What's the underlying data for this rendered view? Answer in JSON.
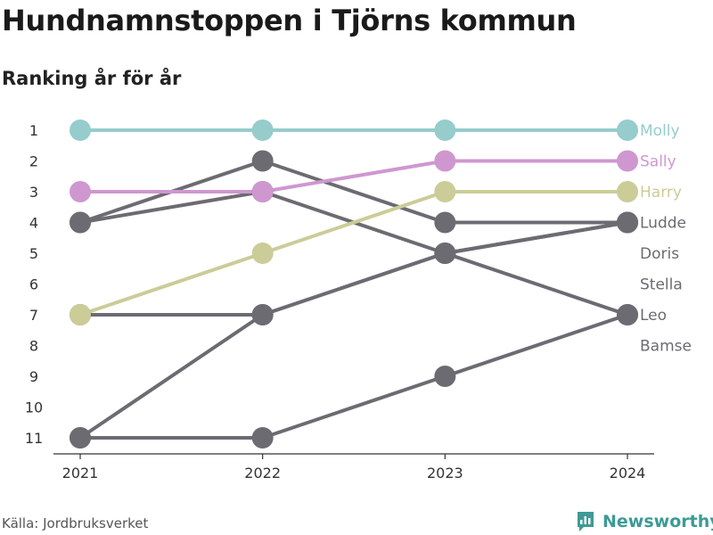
{
  "title": "Hundnamnstoppen i Tjörns kommun",
  "subtitle": "Ranking år för år",
  "source": "Källa: Jordbruksverket",
  "brand": "Newsworthy",
  "colors": {
    "teal": "#96cccc",
    "pink": "#cf97d0",
    "olive": "#cbcc98",
    "gray": "#6c6b72",
    "brand": "#3e9a96"
  },
  "chart_data": {
    "type": "line",
    "x": [
      "2021",
      "2022",
      "2023",
      "2024"
    ],
    "y_ticks": [
      "1",
      "2",
      "3",
      "4",
      "5",
      "6",
      "7",
      "8",
      "9",
      "10",
      "11"
    ],
    "ylim": [
      1,
      11
    ],
    "y_inverted": true,
    "grid": false,
    "series": [
      {
        "name": "Molly",
        "values": [
          1,
          1,
          1,
          1
        ],
        "color": "#96cccc"
      },
      {
        "name": "Sally",
        "values": [
          3,
          3,
          2,
          2
        ],
        "color": "#cf97d0"
      },
      {
        "name": "Harry",
        "values": [
          7,
          5,
          3,
          3
        ],
        "color": "#cbcc98"
      },
      {
        "name": "Ludde",
        "values": [
          4,
          2,
          4,
          4
        ],
        "color": "#6c6b72"
      },
      {
        "name": "Doris",
        "values": [
          11,
          7,
          5,
          4
        ],
        "color": "#6c6b72"
      },
      {
        "name": "Stella",
        "values": [
          7,
          7,
          5,
          4
        ],
        "color": "#6c6b72"
      },
      {
        "name": "Leo",
        "values": [
          4,
          3,
          5,
          7
        ],
        "color": "#6c6b72"
      },
      {
        "name": "Bamse",
        "values": [
          11,
          11,
          9,
          7
        ],
        "color": "#6c6b72"
      }
    ],
    "end_labels": [
      {
        "name": "Molly",
        "rank": 1,
        "color": "#96cccc"
      },
      {
        "name": "Sally",
        "rank": 2,
        "color": "#cf97d0"
      },
      {
        "name": "Harry",
        "rank": 3,
        "color": "#cbcc98"
      },
      {
        "name": "Ludde",
        "rank": 4,
        "color": "#6c6b72"
      },
      {
        "name": "Doris",
        "rank": 5,
        "color": "#6c6b72"
      },
      {
        "name": "Stella",
        "rank": 6,
        "color": "#6c6b72"
      },
      {
        "name": "Leo",
        "rank": 7,
        "color": "#6c6b72"
      },
      {
        "name": "Bamse",
        "rank": 8,
        "color": "#6c6b72"
      }
    ]
  }
}
